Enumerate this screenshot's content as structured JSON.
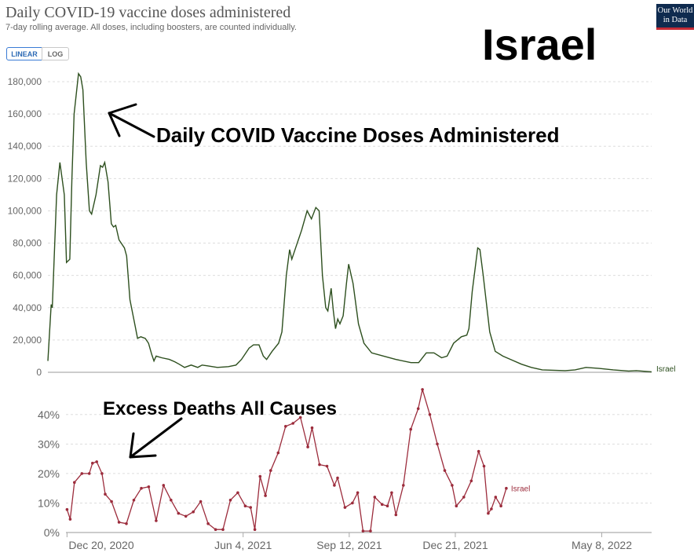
{
  "header": {
    "title": "Daily COVID-19 vaccine doses administered",
    "subtitle": "7-day rolling average. All doses, including boosters, are counted individually.",
    "toggle_linear": "LINEAR",
    "toggle_log": "LOG",
    "logo_text": "Our World in Data",
    "overlay_title": "Israel"
  },
  "annotations": {
    "top": "Daily COVID Vaccine Doses Administered",
    "bottom": "Excess Deaths All Causes"
  },
  "colors": {
    "doses_line": "#2d4f1e",
    "excess_line": "#9c2c3c",
    "gridline": "#dddddd",
    "axis_text": "#666666"
  },
  "chart_data": [
    {
      "type": "line",
      "title": "Daily COVID-19 vaccine doses administered",
      "ylim": [
        0,
        180000
      ],
      "y_ticks": [
        "0",
        "20,000",
        "40,000",
        "60,000",
        "80,000",
        "100,000",
        "120,000",
        "140,000",
        "160,000",
        "180,000"
      ],
      "y_tick_values": [
        0,
        20000,
        40000,
        60000,
        80000,
        100000,
        120000,
        140000,
        160000,
        180000
      ],
      "x_range": [
        "2020-12-19",
        "2022-06-24"
      ],
      "series": [
        {
          "name": "Israel",
          "points": [
            [
              "2020-12-19",
              7000
            ],
            [
              "2020-12-22",
              42000
            ],
            [
              "2020-12-23",
              40000
            ],
            [
              "2020-12-27",
              110000
            ],
            [
              "2020-12-30",
              130000
            ],
            [
              "2021-01-03",
              110000
            ],
            [
              "2021-01-05",
              68000
            ],
            [
              "2021-01-08",
              70000
            ],
            [
              "2021-01-10",
              120000
            ],
            [
              "2021-01-12",
              160000
            ],
            [
              "2021-01-16",
              185000
            ],
            [
              "2021-01-18",
              183000
            ],
            [
              "2021-01-20",
              175000
            ],
            [
              "2021-01-23",
              130000
            ],
            [
              "2021-01-26",
              100000
            ],
            [
              "2021-01-28",
              98000
            ],
            [
              "2021-02-01",
              110000
            ],
            [
              "2021-02-05",
              128000
            ],
            [
              "2021-02-07",
              127000
            ],
            [
              "2021-02-09",
              130000
            ],
            [
              "2021-02-12",
              118000
            ],
            [
              "2021-02-15",
              92000
            ],
            [
              "2021-02-17",
              90000
            ],
            [
              "2021-02-19",
              91000
            ],
            [
              "2021-02-22",
              82000
            ],
            [
              "2021-02-27",
              77000
            ],
            [
              "2021-03-01",
              72000
            ],
            [
              "2021-03-04",
              45000
            ],
            [
              "2021-03-09",
              28000
            ],
            [
              "2021-03-11",
              21000
            ],
            [
              "2021-03-14",
              22000
            ],
            [
              "2021-03-18",
              21000
            ],
            [
              "2021-03-21",
              18000
            ],
            [
              "2021-03-24",
              11000
            ],
            [
              "2021-03-26",
              7000
            ],
            [
              "2021-03-28",
              10000
            ],
            [
              "2021-04-02",
              9000
            ],
            [
              "2021-04-09",
              8000
            ],
            [
              "2021-04-14",
              6500
            ],
            [
              "2021-04-18",
              5000
            ],
            [
              "2021-04-23",
              3000
            ],
            [
              "2021-04-29",
              4500
            ],
            [
              "2021-05-05",
              3000
            ],
            [
              "2021-05-09",
              4500
            ],
            [
              "2021-05-14",
              4000
            ],
            [
              "2021-05-23",
              3000
            ],
            [
              "2021-06-02",
              3500
            ],
            [
              "2021-06-09",
              4500
            ],
            [
              "2021-06-14",
              8000
            ],
            [
              "2021-06-21",
              15000
            ],
            [
              "2021-06-25",
              17000
            ],
            [
              "2021-06-30",
              17000
            ],
            [
              "2021-07-04",
              10000
            ],
            [
              "2021-07-07",
              8000
            ],
            [
              "2021-07-12",
              13000
            ],
            [
              "2021-07-18",
              18000
            ],
            [
              "2021-07-21",
              25000
            ],
            [
              "2021-07-25",
              60000
            ],
            [
              "2021-07-28",
              76000
            ],
            [
              "2021-07-30",
              70000
            ],
            [
              "2021-08-03",
              78000
            ],
            [
              "2021-08-08",
              88000
            ],
            [
              "2021-08-13",
              100000
            ],
            [
              "2021-08-17",
              95000
            ],
            [
              "2021-08-21",
              102000
            ],
            [
              "2021-08-24",
              100000
            ],
            [
              "2021-08-27",
              60000
            ],
            [
              "2021-08-30",
              40000
            ],
            [
              "2021-09-01",
              38000
            ],
            [
              "2021-09-04",
              52000
            ],
            [
              "2021-09-06",
              38000
            ],
            [
              "2021-09-08",
              27000
            ],
            [
              "2021-09-10",
              33000
            ],
            [
              "2021-09-12",
              30000
            ],
            [
              "2021-09-15",
              35000
            ],
            [
              "2021-09-18",
              55000
            ],
            [
              "2021-09-20",
              67000
            ],
            [
              "2021-09-24",
              55000
            ],
            [
              "2021-09-29",
              30000
            ],
            [
              "2021-10-04",
              18000
            ],
            [
              "2021-10-11",
              12000
            ],
            [
              "2021-10-22",
              10000
            ],
            [
              "2021-11-02",
              8000
            ],
            [
              "2021-11-16",
              6000
            ],
            [
              "2021-11-23",
              6000
            ],
            [
              "2021-11-30",
              12000
            ],
            [
              "2021-12-07",
              12000
            ],
            [
              "2021-12-14",
              9000
            ],
            [
              "2021-12-19",
              10000
            ],
            [
              "2021-12-25",
              18000
            ],
            [
              "2022-01-01",
              22000
            ],
            [
              "2022-01-06",
              23000
            ],
            [
              "2022-01-08",
              27000
            ],
            [
              "2022-01-11",
              50000
            ],
            [
              "2022-01-16",
              77000
            ],
            [
              "2022-01-18",
              76000
            ],
            [
              "2022-01-21",
              60000
            ],
            [
              "2022-01-27",
              25000
            ],
            [
              "2022-02-01",
              13000
            ],
            [
              "2022-02-08",
              10000
            ],
            [
              "2022-02-15",
              8000
            ],
            [
              "2022-02-25",
              5000
            ],
            [
              "2022-03-06",
              3000
            ],
            [
              "2022-03-16",
              1500
            ],
            [
              "2022-04-06",
              1000
            ],
            [
              "2022-04-15",
              1500
            ],
            [
              "2022-04-25",
              3000
            ],
            [
              "2022-05-06",
              2500
            ],
            [
              "2022-05-20",
              1500
            ],
            [
              "2022-06-03",
              800
            ],
            [
              "2022-06-10",
              1000
            ],
            [
              "2022-06-24",
              300
            ]
          ]
        }
      ]
    },
    {
      "type": "line",
      "title": "",
      "ylim": [
        0,
        45
      ],
      "y_ticks": [
        "0%",
        "10%",
        "20%",
        "30%",
        "40%"
      ],
      "y_tick_values": [
        0,
        10,
        20,
        30,
        40
      ],
      "x_ticks": [
        "Dec 20, 2020",
        "Jun 4, 2021",
        "Sep 12, 2021",
        "Dec 21, 2021",
        "May 8, 2022"
      ],
      "x_tick_dates": [
        "2020-12-20",
        "2021-06-04",
        "2021-09-12",
        "2021-12-21",
        "2022-05-08"
      ],
      "x_range": [
        "2020-12-19",
        "2022-06-24"
      ],
      "series": [
        {
          "name": "Israel",
          "points": [
            [
              "2020-12-20",
              7.8
            ],
            [
              "2020-12-23",
              4.5
            ],
            [
              "2020-12-27",
              17
            ],
            [
              "2021-01-03",
              20
            ],
            [
              "2021-01-10",
              20
            ],
            [
              "2021-01-13",
              23.5
            ],
            [
              "2021-01-17",
              24
            ],
            [
              "2021-01-22",
              20
            ],
            [
              "2021-01-25",
              13
            ],
            [
              "2021-01-31",
              10.5
            ],
            [
              "2021-02-07",
              3.5
            ],
            [
              "2021-02-14",
              3
            ],
            [
              "2021-02-21",
              11
            ],
            [
              "2021-02-28",
              15
            ],
            [
              "2021-03-07",
              15.5
            ],
            [
              "2021-03-14",
              4
            ],
            [
              "2021-03-21",
              16
            ],
            [
              "2021-03-28",
              11
            ],
            [
              "2021-04-04",
              6.5
            ],
            [
              "2021-04-11",
              5.5
            ],
            [
              "2021-04-18",
              7
            ],
            [
              "2021-04-25",
              10.5
            ],
            [
              "2021-05-02",
              3
            ],
            [
              "2021-05-09",
              1
            ],
            [
              "2021-05-16",
              1
            ],
            [
              "2021-05-23",
              11
            ],
            [
              "2021-05-30",
              13.5
            ],
            [
              "2021-06-06",
              9
            ],
            [
              "2021-06-11",
              8.5
            ],
            [
              "2021-06-15",
              1
            ],
            [
              "2021-06-20",
              19
            ],
            [
              "2021-06-25",
              12.5
            ],
            [
              "2021-06-30",
              21
            ],
            [
              "2021-07-07",
              27
            ],
            [
              "2021-07-14",
              36
            ],
            [
              "2021-07-21",
              37
            ],
            [
              "2021-07-28",
              39
            ],
            [
              "2021-08-04",
              29
            ],
            [
              "2021-08-08",
              35.5
            ],
            [
              "2021-08-15",
              23
            ],
            [
              "2021-08-22",
              22.5
            ],
            [
              "2021-08-29",
              16
            ],
            [
              "2021-09-01",
              18.5
            ],
            [
              "2021-09-08",
              8.5
            ],
            [
              "2021-09-15",
              10
            ],
            [
              "2021-09-20",
              13.5
            ],
            [
              "2021-09-25",
              0.5
            ],
            [
              "2021-10-02",
              0.5
            ],
            [
              "2021-10-06",
              12
            ],
            [
              "2021-10-13",
              9.5
            ],
            [
              "2021-10-18",
              9
            ],
            [
              "2021-10-22",
              13.5
            ],
            [
              "2021-10-26",
              6
            ],
            [
              "2021-11-02",
              16
            ],
            [
              "2021-11-09",
              35
            ],
            [
              "2021-11-16",
              42
            ],
            [
              "2021-11-20",
              48.5
            ],
            [
              "2021-11-27",
              40
            ],
            [
              "2021-12-04",
              30
            ],
            [
              "2021-12-11",
              21
            ],
            [
              "2021-12-18",
              16
            ],
            [
              "2021-12-22",
              9
            ],
            [
              "2021-12-29",
              12
            ],
            [
              "2022-01-05",
              17.5
            ],
            [
              "2022-01-12",
              27.5
            ],
            [
              "2022-01-17",
              22.5
            ],
            [
              "2022-01-21",
              6.5
            ],
            [
              "2022-01-24",
              8
            ],
            [
              "2022-01-28",
              12
            ],
            [
              "2022-02-02",
              9
            ],
            [
              "2022-02-07",
              15
            ]
          ]
        }
      ]
    }
  ]
}
